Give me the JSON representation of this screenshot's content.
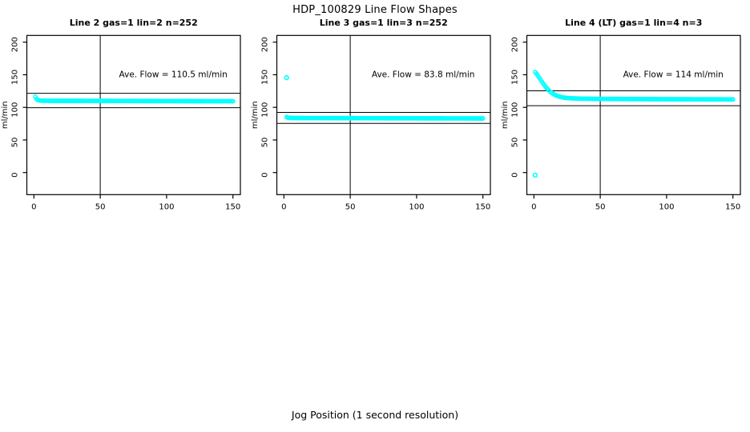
{
  "figure": {
    "title": "HDP_100829  Line Flow Shapes",
    "xlabel": "Jog Position (1 second resolution)",
    "background": "#FFFFFF",
    "axis_color": "#000000",
    "marker_color": "#00FFFF"
  },
  "chart_data": [
    {
      "type": "scatter",
      "title": "Line 2 gas=1 lin=2 n=252",
      "annotation": "Ave. Flow =  110.5  ml/min",
      "ave_flow_ml_min": 110.5,
      "n": 252,
      "ylabel": "ml/min",
      "x_ticks": [
        0,
        50,
        100,
        150
      ],
      "y_ticks": [
        0,
        50,
        100,
        150,
        200
      ],
      "xlim": [
        -5,
        156
      ],
      "ylim": [
        -34,
        210
      ],
      "vline_x": 50,
      "ref_lines": [
        121.6,
        99.5
      ],
      "grid": false,
      "profile": [
        [
          1,
          116.5
        ],
        [
          2,
          112.8
        ],
        [
          3,
          111.3
        ],
        [
          4,
          110.7
        ],
        [
          5,
          110.4
        ],
        [
          8,
          110.1
        ],
        [
          15,
          110
        ],
        [
          30,
          110
        ],
        [
          60,
          109.8
        ],
        [
          100,
          109.6
        ],
        [
          150,
          109.4
        ]
      ],
      "outliers": []
    },
    {
      "type": "scatter",
      "title": "Line 3 gas=1 lin=3 n=252",
      "annotation": "Ave. Flow =  83.8  ml/min",
      "ave_flow_ml_min": 83.8,
      "n": 252,
      "ylabel": "ml/min",
      "x_ticks": [
        0,
        50,
        100,
        150
      ],
      "y_ticks": [
        0,
        50,
        100,
        150,
        200
      ],
      "xlim": [
        -5,
        156
      ],
      "ylim": [
        -34,
        210
      ],
      "vline_x": 50,
      "ref_lines": [
        92.2,
        75.4
      ],
      "grid": false,
      "profile": [
        [
          2,
          85
        ],
        [
          3,
          84.2
        ],
        [
          5,
          83.8
        ],
        [
          10,
          83.6
        ],
        [
          30,
          83.5
        ],
        [
          60,
          83.4
        ],
        [
          100,
          83.2
        ],
        [
          150,
          83
        ]
      ],
      "outliers": [
        [
          2,
          145.5
        ]
      ]
    },
    {
      "type": "scatter",
      "title": "Line 4 (LT) gas=1 lin=4 n=3",
      "annotation": "Ave. Flow =  114  ml/min",
      "ave_flow_ml_min": 114,
      "n": 3,
      "ylabel": "ml/min",
      "x_ticks": [
        0,
        50,
        100,
        150
      ],
      "y_ticks": [
        0,
        50,
        100,
        150,
        200
      ],
      "xlim": [
        -5,
        156
      ],
      "ylim": [
        -34,
        210
      ],
      "vline_x": 50,
      "ref_lines": [
        125.4,
        102.6
      ],
      "grid": false,
      "profile": [
        [
          1,
          154
        ],
        [
          2,
          151.5
        ],
        [
          3,
          148.5
        ],
        [
          4,
          145.5
        ],
        [
          5,
          142.5
        ],
        [
          6,
          139.5
        ],
        [
          7,
          136.5
        ],
        [
          8,
          133.8
        ],
        [
          9,
          131.2
        ],
        [
          10,
          128.8
        ],
        [
          11,
          126.6
        ],
        [
          12,
          124.6
        ],
        [
          13,
          122.9
        ],
        [
          14,
          121.4
        ],
        [
          15,
          120.1
        ],
        [
          16,
          119
        ],
        [
          17,
          118.1
        ],
        [
          18,
          117.3
        ],
        [
          19,
          116.6
        ],
        [
          20,
          116
        ],
        [
          22,
          115.2
        ],
        [
          24,
          114.6
        ],
        [
          26,
          114.2
        ],
        [
          28,
          113.9
        ],
        [
          30,
          113.7
        ],
        [
          35,
          113.4
        ],
        [
          40,
          113.2
        ],
        [
          50,
          113
        ],
        [
          60,
          112.9
        ],
        [
          80,
          112.7
        ],
        [
          100,
          112.5
        ],
        [
          120,
          112.4
        ],
        [
          150,
          112.2
        ]
      ],
      "outliers": [
        [
          1,
          -4
        ]
      ]
    }
  ]
}
